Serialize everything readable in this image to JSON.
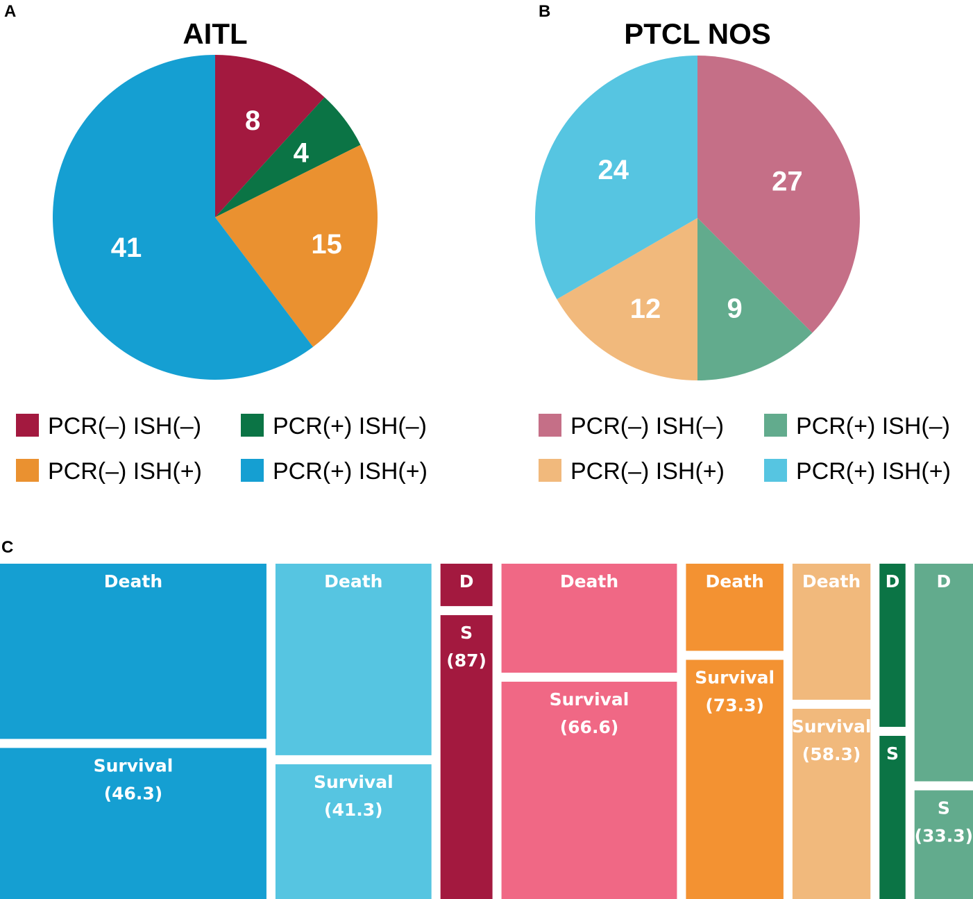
{
  "panels": {
    "a": "A",
    "b": "B",
    "c": "C"
  },
  "chart_data": [
    {
      "type": "pie",
      "panel": "A",
      "title": "AITL",
      "slices": [
        {
          "label": "PCR(–) ISH(–)",
          "value": 8,
          "color": "#a3193f"
        },
        {
          "label": "PCR(+) ISH(–)",
          "value": 4,
          "color": "#0b7445"
        },
        {
          "label": "PCR(–) ISH(+)",
          "value": 15,
          "color": "#ea9130"
        },
        {
          "label": "PCR(+) ISH(+)",
          "value": 41,
          "color": "#159fd2"
        }
      ]
    },
    {
      "type": "pie",
      "panel": "B",
      "title": "PTCL NOS",
      "slices": [
        {
          "label": "PCR(–) ISH(–)",
          "value": 27,
          "color": "#c56f87"
        },
        {
          "label": "PCR(+) ISH(–)",
          "value": 9,
          "color": "#62ab8d"
        },
        {
          "label": "PCR(–) ISH(+)",
          "value": 12,
          "color": "#f1b97c"
        },
        {
          "label": "PCR(+) ISH(+)",
          "value": 24,
          "color": "#56c5e1"
        }
      ]
    },
    {
      "type": "treemap",
      "panel": "C",
      "groups": [
        {
          "n": 41,
          "color": "#159fd2",
          "death_label": "Death",
          "survival_label": "Survival",
          "survival_value": "(46.3)",
          "survival_pct": 46.3
        },
        {
          "n": 24,
          "color": "#56c5e1",
          "death_label": "Death",
          "survival_label": "Survival",
          "survival_value": "(41.3)",
          "survival_pct": 41.3
        },
        {
          "n": 8,
          "color": "#a3193f",
          "death_label": "D",
          "survival_label": "S",
          "survival_value": "(87)",
          "survival_pct": 87
        },
        {
          "n": 27,
          "color": "#f06885",
          "death_label": "Death",
          "survival_label": "Survival",
          "survival_value": "(66.6)",
          "survival_pct": 66.6
        },
        {
          "n": 15,
          "color": "#f39232",
          "death_label": "Death",
          "survival_label": "Survival",
          "survival_value": "(73.3)",
          "survival_pct": 73.3
        },
        {
          "n": 12,
          "color": "#f1b97c",
          "death_label": "Death",
          "survival_label": "Survival",
          "survival_value": "(58.3)",
          "survival_pct": 58.3
        },
        {
          "n": 4,
          "color": "#0b7445",
          "death_label": "D",
          "survival_label": "S",
          "survival_value": "",
          "survival_pct": 50
        },
        {
          "n": 9,
          "color": "#62ab8d",
          "death_label": "D",
          "survival_label": "S",
          "survival_value": "(33.3)",
          "survival_pct": 33.3
        }
      ]
    }
  ]
}
